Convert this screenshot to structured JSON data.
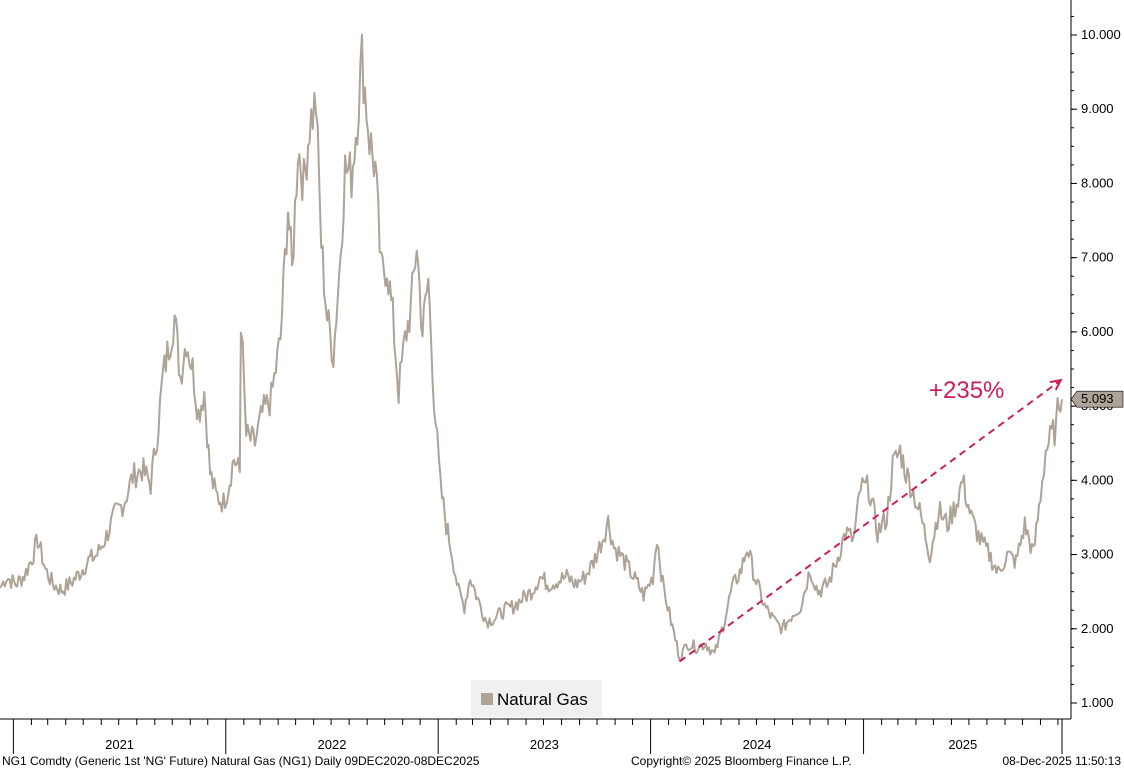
{
  "chart_data": {
    "type": "line",
    "title": "",
    "xlabel": "",
    "ylabel": "",
    "ylim": [
      0.8,
      10.6
    ],
    "x_range": [
      "2020-12-09",
      "2025-12-08"
    ],
    "y_ticks": [
      "1.000",
      "2.000",
      "3.000",
      "4.000",
      "5.000",
      "6.000",
      "7.000",
      "8.000",
      "9.000",
      "10.000"
    ],
    "x_tick_labels": [
      {
        "label": "2021",
        "year": 2021
      },
      {
        "label": "2022",
        "year": 2022
      },
      {
        "label": "2023",
        "year": 2023
      },
      {
        "label": "2024",
        "year": 2024
      },
      {
        "label": "2025",
        "year": 2025
      }
    ],
    "legend": {
      "label": "Natural Gas",
      "placement": "bottom-center"
    },
    "last_value_label": "5.093",
    "last_value": 5.093,
    "series": [
      {
        "name": "Natural Gas",
        "color": "#ada397",
        "points": [
          [
            "2020-12-09",
            2.55
          ],
          [
            "2020-12-20",
            2.7
          ],
          [
            "2021-01-05",
            2.6
          ],
          [
            "2021-01-20",
            2.72
          ],
          [
            "2021-02-02",
            2.95
          ],
          [
            "2021-02-12",
            3.2
          ],
          [
            "2021-02-25",
            2.8
          ],
          [
            "2021-03-10",
            2.6
          ],
          [
            "2021-03-25",
            2.52
          ],
          [
            "2021-04-10",
            2.62
          ],
          [
            "2021-04-25",
            2.75
          ],
          [
            "2021-05-10",
            2.92
          ],
          [
            "2021-05-25",
            3.0
          ],
          [
            "2021-06-10",
            3.25
          ],
          [
            "2021-06-25",
            3.55
          ],
          [
            "2021-07-10",
            3.7
          ],
          [
            "2021-07-25",
            4.05
          ],
          [
            "2021-08-10",
            4.15
          ],
          [
            "2021-08-25",
            3.95
          ],
          [
            "2021-09-05",
            4.6
          ],
          [
            "2021-09-15",
            5.4
          ],
          [
            "2021-09-25",
            5.8
          ],
          [
            "2021-10-05",
            6.2
          ],
          [
            "2021-10-15",
            5.4
          ],
          [
            "2021-10-25",
            5.9
          ],
          [
            "2021-11-05",
            5.5
          ],
          [
            "2021-11-15",
            4.9
          ],
          [
            "2021-11-25",
            5.2
          ],
          [
            "2021-12-05",
            4.1
          ],
          [
            "2021-12-15",
            3.8
          ],
          [
            "2021-12-28",
            3.7
          ],
          [
            "2022-01-05",
            3.9
          ],
          [
            "2022-01-15",
            4.3
          ],
          [
            "2022-01-25",
            4.1
          ],
          [
            "2022-01-27",
            6.2
          ],
          [
            "2022-02-05",
            4.6
          ],
          [
            "2022-02-20",
            4.5
          ],
          [
            "2022-03-05",
            4.9
          ],
          [
            "2022-03-20",
            5.1
          ],
          [
            "2022-04-05",
            5.9
          ],
          [
            "2022-04-18",
            7.7
          ],
          [
            "2022-04-25",
            6.8
          ],
          [
            "2022-05-05",
            8.5
          ],
          [
            "2022-05-15",
            8.0
          ],
          [
            "2022-05-25",
            8.8
          ],
          [
            "2022-06-05",
            9.1
          ],
          [
            "2022-06-14",
            7.2
          ],
          [
            "2022-06-24",
            6.2
          ],
          [
            "2022-07-05",
            5.7
          ],
          [
            "2022-07-15",
            6.8
          ],
          [
            "2022-07-25",
            8.2
          ],
          [
            "2022-08-05",
            8.1
          ],
          [
            "2022-08-15",
            8.9
          ],
          [
            "2022-08-23",
            9.7
          ],
          [
            "2022-09-05",
            8.6
          ],
          [
            "2022-09-15",
            8.2
          ],
          [
            "2022-09-25",
            6.8
          ],
          [
            "2022-10-05",
            6.9
          ],
          [
            "2022-10-15",
            6.2
          ],
          [
            "2022-10-25",
            5.2
          ],
          [
            "2022-11-05",
            5.9
          ],
          [
            "2022-11-15",
            6.3
          ],
          [
            "2022-11-25",
            7.2
          ],
          [
            "2022-12-05",
            6.0
          ],
          [
            "2022-12-15",
            6.7
          ],
          [
            "2022-12-25",
            5.1
          ],
          [
            "2023-01-05",
            3.9
          ],
          [
            "2023-01-15",
            3.4
          ],
          [
            "2023-01-25",
            3.0
          ],
          [
            "2023-02-05",
            2.5
          ],
          [
            "2023-02-15",
            2.3
          ],
          [
            "2023-02-25",
            2.7
          ],
          [
            "2023-03-10",
            2.4
          ],
          [
            "2023-03-25",
            2.1
          ],
          [
            "2023-04-10",
            2.15
          ],
          [
            "2023-04-25",
            2.25
          ],
          [
            "2023-05-10",
            2.3
          ],
          [
            "2023-05-25",
            2.4
          ],
          [
            "2023-06-10",
            2.5
          ],
          [
            "2023-06-25",
            2.7
          ],
          [
            "2023-07-10",
            2.6
          ],
          [
            "2023-07-25",
            2.65
          ],
          [
            "2023-08-10",
            2.7
          ],
          [
            "2023-08-25",
            2.6
          ],
          [
            "2023-09-10",
            2.7
          ],
          [
            "2023-09-25",
            2.9
          ],
          [
            "2023-10-10",
            3.2
          ],
          [
            "2023-10-20",
            3.45
          ],
          [
            "2023-10-30",
            3.1
          ],
          [
            "2023-11-10",
            3.0
          ],
          [
            "2023-11-25",
            2.8
          ],
          [
            "2023-12-10",
            2.6
          ],
          [
            "2023-12-20",
            2.45
          ],
          [
            "2024-01-05",
            2.7
          ],
          [
            "2024-01-12",
            3.25
          ],
          [
            "2024-01-22",
            2.6
          ],
          [
            "2024-02-05",
            2.1
          ],
          [
            "2024-02-20",
            1.62
          ],
          [
            "2024-03-05",
            1.8
          ],
          [
            "2024-03-20",
            1.75
          ],
          [
            "2024-04-05",
            1.8
          ],
          [
            "2024-04-20",
            1.65
          ],
          [
            "2024-05-05",
            2.05
          ],
          [
            "2024-05-20",
            2.55
          ],
          [
            "2024-06-05",
            2.8
          ],
          [
            "2024-06-15",
            3.1
          ],
          [
            "2024-06-28",
            2.7
          ],
          [
            "2024-07-15",
            2.3
          ],
          [
            "2024-08-01",
            2.1
          ],
          [
            "2024-08-15",
            2.0
          ],
          [
            "2024-09-01",
            2.2
          ],
          [
            "2024-09-15",
            2.3
          ],
          [
            "2024-10-01",
            2.8
          ],
          [
            "2024-10-15",
            2.5
          ],
          [
            "2024-11-01",
            2.6
          ],
          [
            "2024-11-15",
            2.9
          ],
          [
            "2024-12-01",
            3.3
          ],
          [
            "2024-12-15",
            3.2
          ],
          [
            "2024-12-27",
            3.9
          ],
          [
            "2025-01-10",
            3.9
          ],
          [
            "2025-01-25",
            3.3
          ],
          [
            "2025-02-10",
            3.5
          ],
          [
            "2025-02-20",
            4.2
          ],
          [
            "2025-03-05",
            4.4
          ],
          [
            "2025-03-15",
            4.1
          ],
          [
            "2025-03-25",
            3.9
          ],
          [
            "2025-04-10",
            3.5
          ],
          [
            "2025-04-25",
            3.0
          ],
          [
            "2025-05-10",
            3.6
          ],
          [
            "2025-05-25",
            3.4
          ],
          [
            "2025-06-10",
            3.7
          ],
          [
            "2025-06-20",
            4.0
          ],
          [
            "2025-07-05",
            3.5
          ],
          [
            "2025-07-20",
            3.2
          ],
          [
            "2025-08-05",
            3.0
          ],
          [
            "2025-08-20",
            2.75
          ],
          [
            "2025-09-05",
            3.0
          ],
          [
            "2025-09-20",
            2.9
          ],
          [
            "2025-10-05",
            3.4
          ],
          [
            "2025-10-20",
            3.0
          ],
          [
            "2025-11-01",
            3.8
          ],
          [
            "2025-11-10",
            4.4
          ],
          [
            "2025-11-20",
            4.6
          ],
          [
            "2025-11-28",
            4.7
          ],
          [
            "2025-12-03",
            5.1
          ],
          [
            "2025-12-08",
            5.093
          ]
        ]
      }
    ],
    "annotation": {
      "label": "+235%",
      "color": "#cc1e5a",
      "from": [
        "2024-02-20",
        1.56
      ],
      "to": [
        "2025-12-06",
        5.35
      ]
    }
  },
  "footer": {
    "left": "NG1 Comdty (Generic 1st 'NG' Future) Natural Gas (NG1) Daily 09DEC2020-08DEC2025",
    "center": "Copyright© 2025 Bloomberg Finance L.P.",
    "right": "08-Dec-2025 11:50:13"
  },
  "colors": {
    "series": "#ada397",
    "annotation": "#cc1e5a",
    "last_value_box": "#ada397",
    "legend_bg": "#f0f0f0"
  }
}
